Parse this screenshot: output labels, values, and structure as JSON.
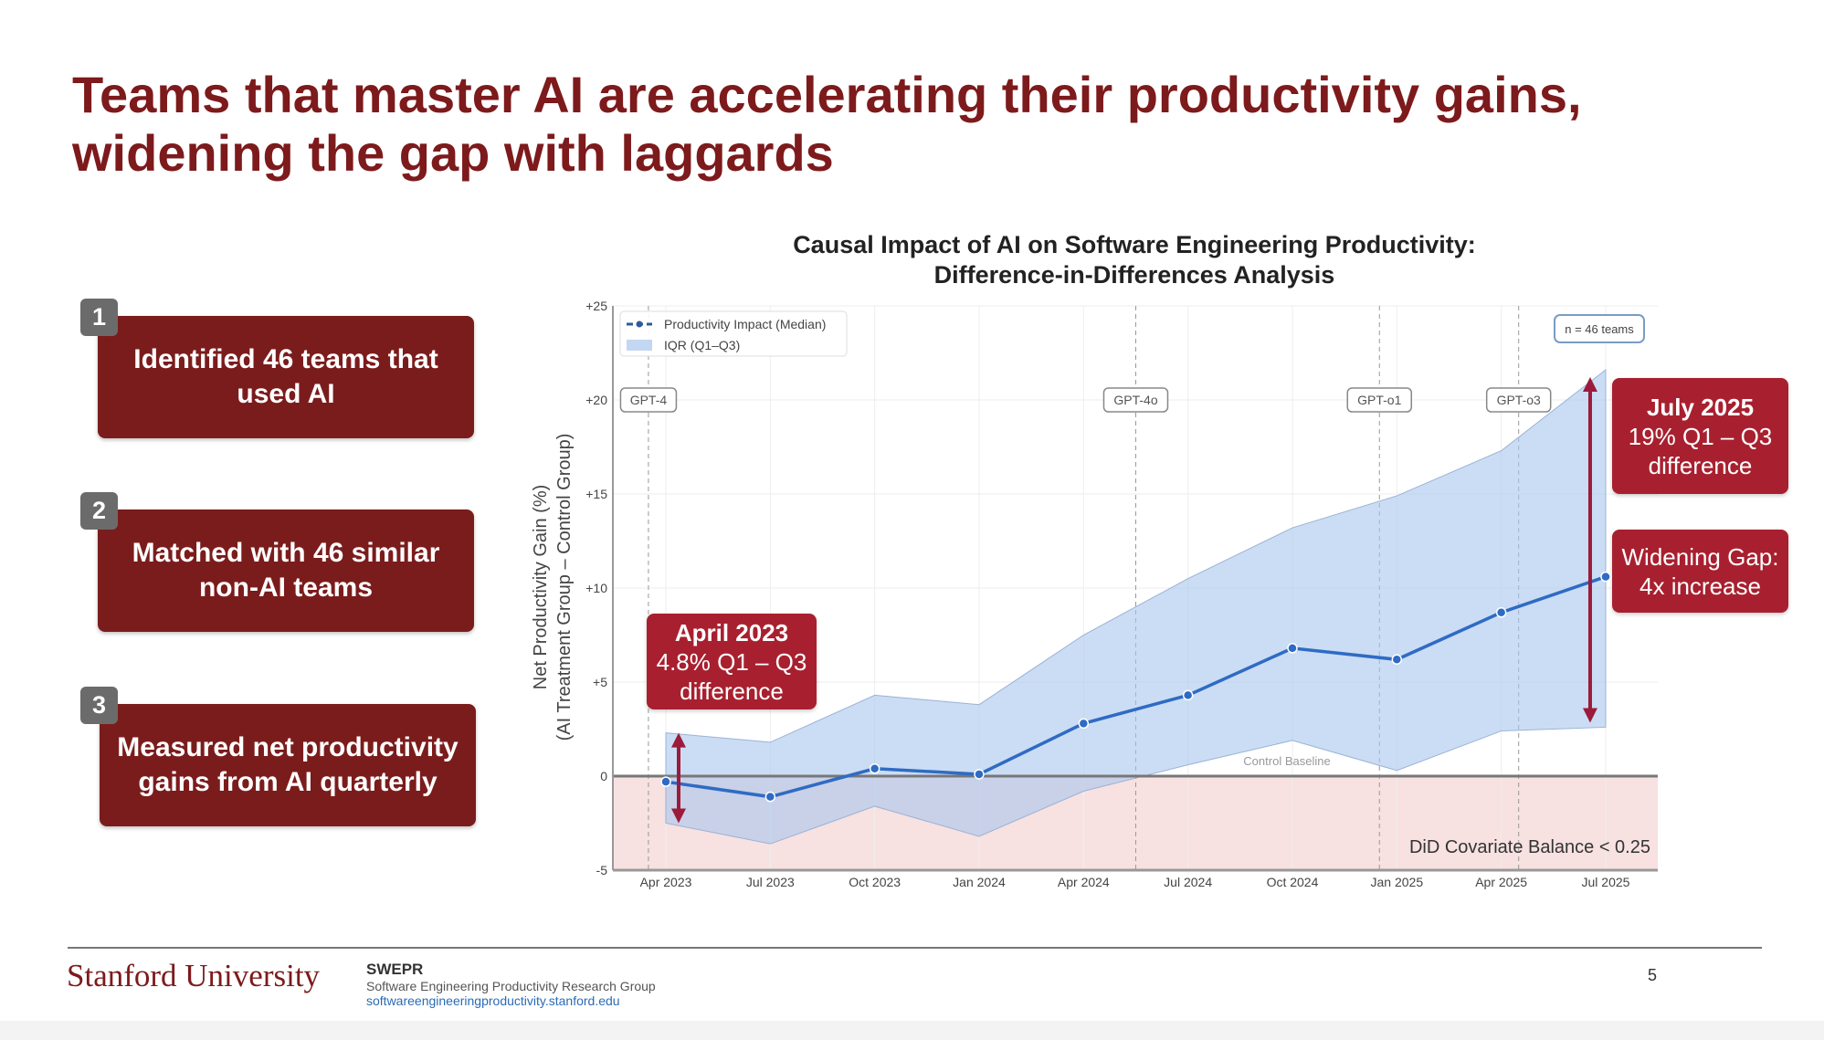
{
  "slide": {
    "title_line1": "Teams that master AI are accelerating their productivity gains,",
    "title_line2": "widening the gap with laggards",
    "steps": [
      {
        "number": "1",
        "text": "Identified 46 teams that used AI"
      },
      {
        "number": "2",
        "text": "Matched with 46 similar non-AI teams"
      },
      {
        "number": "3",
        "text": "Measured net productivity gains from AI quarterly"
      }
    ],
    "footer": {
      "university": "Stanford University",
      "group_short": "SWEPR",
      "group_name": "Software Engineering Productivity Research Group",
      "url": "softwareengineeringproductivity.stanford.edu",
      "page_number": "5"
    }
  },
  "chart_data": {
    "type": "line",
    "title_line1": "Causal Impact of AI on Software Engineering Productivity:",
    "title_line2": "Difference-in-Differences Analysis",
    "ylabel_line1": "Net Productivity Gain (%)",
    "ylabel_line2": "(AI Treatment Group – Control Group)",
    "xlabel": "",
    "categories": [
      "Apr 2023",
      "Jul 2023",
      "Oct 2023",
      "Jan 2024",
      "Apr 2024",
      "Jul 2024",
      "Oct 2024",
      "Jan 2025",
      "Apr 2025",
      "Jul 2025"
    ],
    "ylim": [
      -5,
      25
    ],
    "yticks": [
      -5,
      0,
      5,
      10,
      15,
      20,
      25
    ],
    "ytick_labels": [
      "-5",
      "0",
      "+5",
      "+10",
      "+15",
      "+20",
      "+25"
    ],
    "grid": true,
    "series": [
      {
        "name": "Productivity Impact (Median)",
        "color": "#2f6bc4",
        "values": [
          -0.3,
          -1.1,
          0.4,
          0.1,
          2.8,
          4.3,
          6.8,
          6.2,
          8.7,
          10.6
        ]
      }
    ],
    "band": {
      "name": "IQR (Q1–Q3)",
      "color": "#a9c6ec",
      "q1": [
        -2.5,
        -3.6,
        -1.6,
        -3.2,
        -0.8,
        0.6,
        1.9,
        0.3,
        2.4,
        2.6
      ],
      "q3": [
        2.3,
        1.8,
        4.3,
        3.8,
        7.5,
        10.5,
        13.2,
        14.9,
        17.3,
        21.6
      ]
    },
    "legend_position": "top-left",
    "negative_region_color": "#f7e1e1",
    "baseline_label": "Control Baseline",
    "events": [
      {
        "label": "GPT-4",
        "month": "2023-03"
      },
      {
        "label": "GPT-4o",
        "month": "2024-05"
      },
      {
        "label": "GPT-o1",
        "month": "2024-12"
      },
      {
        "label": "GPT-o3",
        "month": "2025-04"
      }
    ],
    "sample_note": "n = 46 teams",
    "balance_note": "DiD Covariate Balance < 0.25",
    "annotations": {
      "start": {
        "title": "April 2023",
        "line2": "4.8% Q1 – Q3",
        "line3": "difference"
      },
      "end": {
        "title": "July 2025",
        "line2": "19% Q1 – Q3",
        "line3": "difference"
      },
      "gap": {
        "line1": "Widening Gap:",
        "line2": "4x increase"
      }
    },
    "accent_color": "#a8202f"
  }
}
